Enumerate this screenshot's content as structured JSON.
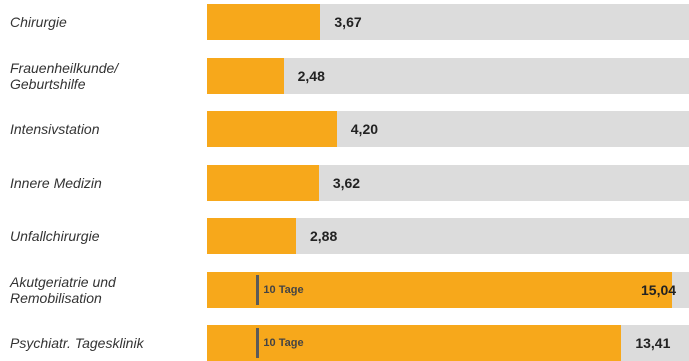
{
  "chart_data": {
    "type": "bar",
    "orientation": "horizontal",
    "xlim": [
      0,
      15.6
    ],
    "categories": [
      [
        "Chirurgie"
      ],
      [
        "Frauenheilkunde/",
        "Geburtshilfe"
      ],
      [
        "Intensivstation"
      ],
      [
        "Innere Medizin"
      ],
      [
        "Unfallchirurgie"
      ],
      [
        "Akutgeriatrie und",
        "Remobilisation"
      ],
      [
        "Psychiatr. Tagesklinik"
      ]
    ],
    "values": [
      3.67,
      2.48,
      4.2,
      3.62,
      2.88,
      15.04,
      13.41
    ],
    "value_labels": [
      "3,67",
      "2,48",
      "4,20",
      "3,62",
      "2,88",
      "15,04",
      "13,41"
    ],
    "reference_markers": [
      {
        "category_index": 5,
        "value": 1.6,
        "label": "10 Tage"
      },
      {
        "category_index": 6,
        "value": 1.6,
        "label": "10 Tage"
      }
    ],
    "colors": {
      "bar": "#f7a81b",
      "track": "#dcdcdc",
      "marker": "#5a5a5a"
    }
  }
}
